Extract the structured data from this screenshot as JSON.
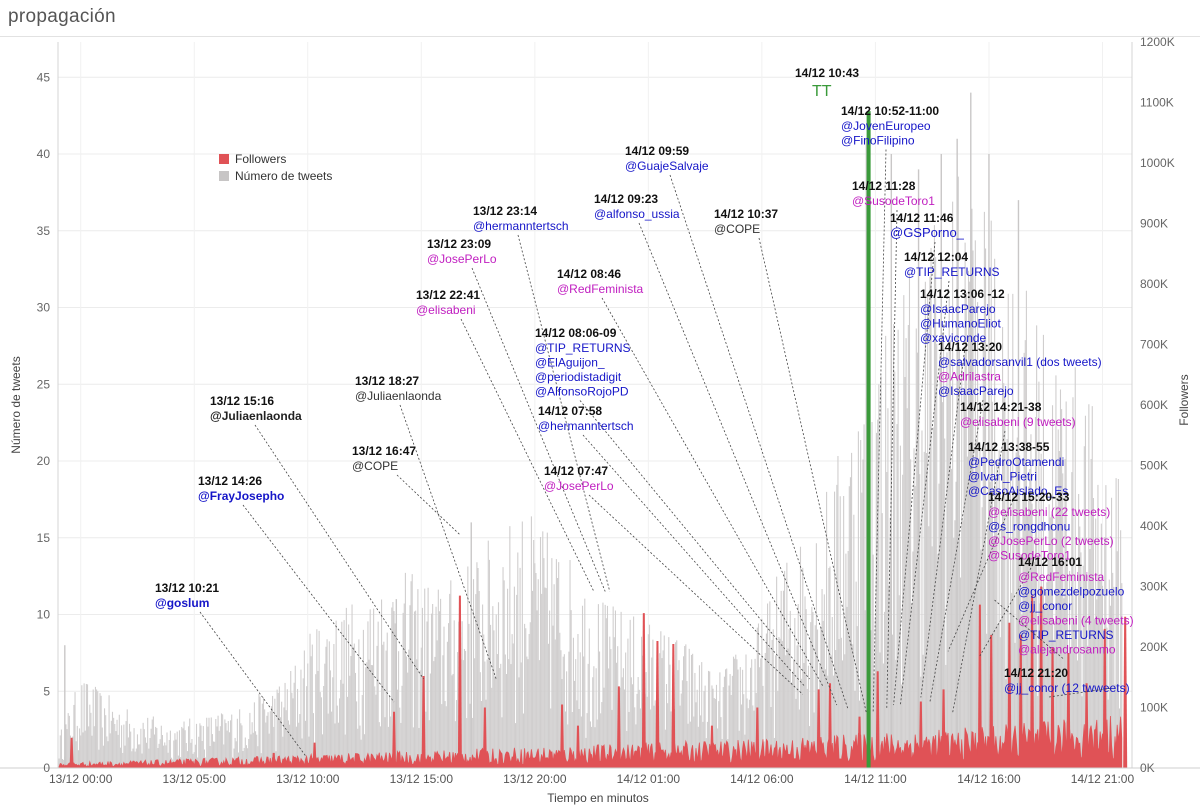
{
  "page": {
    "title": "propagación"
  },
  "chart_data": {
    "type": "bar",
    "xlabel": "Tiempo en minutos",
    "ylabel_left": "Número de tweets",
    "ylabel_right": "Followers",
    "x_ticks": [
      "13/12 00:00",
      "13/12 05:00",
      "13/12 10:00",
      "13/12 15:00",
      "13/12 20:00",
      "14/12 01:00",
      "14/12 06:00",
      "14/12 11:00",
      "14/12 16:00",
      "14/12 21:00"
    ],
    "x_range_hours": [
      -1,
      46.3
    ],
    "y_left_ticks": [
      0,
      5,
      10,
      15,
      20,
      25,
      30,
      35,
      40,
      45
    ],
    "y_left_range": [
      0,
      47.3
    ],
    "y_right_ticks": [
      "0K",
      "100K",
      "200K",
      "300K",
      "400K",
      "500K",
      "600K",
      "700K",
      "800K",
      "900K",
      "1000K",
      "1100K",
      "1200K"
    ],
    "y_right_range": [
      0,
      1200000
    ],
    "legend": {
      "position": "upper-left",
      "entries": [
        {
          "name": "Followers",
          "color": "#e05256"
        },
        {
          "name": "Número de tweets",
          "color": "#c7c5c5"
        }
      ]
    },
    "series": [
      {
        "name": "Número de tweets",
        "color": "#d0cece",
        "axis": "left",
        "envelope_hours": [
          -1,
          0,
          2,
          4,
          7,
          9,
          10.5,
          12,
          14,
          16,
          18,
          19.5,
          21,
          22,
          23,
          24.5,
          26,
          27,
          28,
          29,
          30,
          31,
          32,
          33,
          34,
          35,
          36,
          37,
          38,
          39,
          40,
          41,
          42,
          43,
          44,
          45,
          46
        ],
        "envelope_values": [
          2,
          6,
          4,
          3,
          4,
          6,
          10,
          11,
          13,
          12,
          15,
          17,
          15,
          13,
          11,
          10,
          9,
          8,
          6,
          8,
          10,
          14,
          16,
          19,
          24,
          28,
          32,
          35,
          38,
          40,
          36,
          34,
          30,
          28,
          26,
          22,
          18
        ],
        "spikes": [
          {
            "hour": -0.7,
            "value": 8
          },
          {
            "hour": 13.9,
            "value": 11
          },
          {
            "hour": 17.2,
            "value": 16
          },
          {
            "hour": 34.6,
            "value": 41
          },
          {
            "hour": 35.7,
            "value": 40
          },
          {
            "hour": 36.9,
            "value": 39
          },
          {
            "hour": 37.9,
            "value": 40
          },
          {
            "hour": 38.6,
            "value": 41
          },
          {
            "hour": 39.2,
            "value": 44
          },
          {
            "hour": 40.0,
            "value": 40
          },
          {
            "hour": 41.3,
            "value": 37
          }
        ]
      },
      {
        "name": "Followers",
        "color": "#e05256",
        "axis": "right",
        "baseline_values_k": [
          7,
          10,
          14,
          18,
          22,
          26,
          30,
          34,
          38,
          45,
          50,
          60,
          70
        ],
        "spikes": [
          {
            "hour": -0.4,
            "value_k": 50
          },
          {
            "hour": 8.5,
            "value_k": 25
          },
          {
            "hour": 10.3,
            "value_k": 42
          },
          {
            "hour": 13.8,
            "value_k": 93
          },
          {
            "hour": 15.1,
            "value_k": 152
          },
          {
            "hour": 16.7,
            "value_k": 285
          },
          {
            "hour": 17.8,
            "value_k": 100
          },
          {
            "hour": 21.2,
            "value_k": 105
          },
          {
            "hour": 21.9,
            "value_k": 70
          },
          {
            "hour": 23.7,
            "value_k": 135
          },
          {
            "hour": 24.8,
            "value_k": 256
          },
          {
            "hour": 25.4,
            "value_k": 210
          },
          {
            "hour": 26.1,
            "value_k": 205
          },
          {
            "hour": 27.8,
            "value_k": 70
          },
          {
            "hour": 29.8,
            "value_k": 100
          },
          {
            "hour": 32.5,
            "value_k": 130
          },
          {
            "hour": 33.0,
            "value_k": 140
          },
          {
            "hour": 34.3,
            "value_k": 85
          },
          {
            "hour": 35.1,
            "value_k": 160
          },
          {
            "hour": 37.0,
            "value_k": 110
          },
          {
            "hour": 38.0,
            "value_k": 130
          },
          {
            "hour": 39.6,
            "value_k": 270
          },
          {
            "hour": 40.1,
            "value_k": 220
          },
          {
            "hour": 40.9,
            "value_k": 240
          },
          {
            "hour": 41.4,
            "value_k": 220
          },
          {
            "hour": 41.9,
            "value_k": 285
          },
          {
            "hour": 42.3,
            "value_k": 300
          },
          {
            "hour": 42.8,
            "value_k": 200
          },
          {
            "hour": 43.5,
            "value_k": 190
          },
          {
            "hour": 44.3,
            "value_k": 140
          },
          {
            "hour": 45.1,
            "value_k": 230
          },
          {
            "hour": 46.0,
            "value_k": 250
          }
        ]
      },
      {
        "name": "TT",
        "color": "#3a9a3a",
        "axis": "left",
        "points": [
          {
            "hour": 34.7,
            "value": 42.8
          }
        ]
      }
    ],
    "annotations": [
      {
        "time": "13/12 10:21",
        "lines": [
          {
            "text": "@goslum",
            "color": "#1515c8",
            "bold": true
          }
        ],
        "target": [
          9.9,
          0.8
        ]
      },
      {
        "time": "13/12 14:26",
        "lines": [
          {
            "text": "@FrayJosepho",
            "color": "#1515c8",
            "bold": true
          }
        ],
        "target": [
          13.8,
          4.3
        ]
      },
      {
        "time": "13/12 15:16",
        "lines": [
          {
            "text": "@Juliaenlaonda",
            "color": "#222222",
            "bold": true
          }
        ],
        "target": [
          15.1,
          5.8
        ]
      },
      {
        "time": "13/12 18:27",
        "lines": [
          {
            "text": "@Juliaenlaonda",
            "color": "#333333",
            "bold": false
          }
        ],
        "target": [
          18.3,
          5.8
        ]
      },
      {
        "time": "13/12 16:47",
        "lines": [
          {
            "text": "@COPE",
            "color": "#333333",
            "bold": false
          }
        ],
        "target": [
          16.7,
          15.2
        ]
      },
      {
        "time": "13/12 22:41",
        "lines": [
          {
            "text": "@elisabeni",
            "color": "#c01ec0",
            "bold": false
          }
        ],
        "target": [
          22.6,
          11.5
        ]
      },
      {
        "time": "13/12 23:09",
        "lines": [
          {
            "text": "@JosePerLo",
            "color": "#c01ec0",
            "bold": false
          }
        ],
        "target": [
          23.1,
          11.5
        ]
      },
      {
        "time": "13/12 23:14",
        "lines": [
          {
            "text": "@hermanntertsch",
            "color": "#1515c8",
            "bold": false
          }
        ],
        "target": [
          23.3,
          11.5
        ]
      },
      {
        "time": "14/12 08:06-09",
        "lines": [
          {
            "text": "@TIP_RETURNS",
            "color": "#1515c8",
            "bold": false
          },
          {
            "text": "@ElAguijon_",
            "color": "#1515c8",
            "bold": false
          },
          {
            "text": "@periodistadigit",
            "color": "#1515c8",
            "bold": false
          },
          {
            "text": "@AlfonsoRojoPD",
            "color": "#1515c8",
            "bold": false
          }
        ],
        "target": [
          32.1,
          5.8
        ]
      },
      {
        "time": "14/12 08:46",
        "lines": [
          {
            "text": "@RedFeminista",
            "color": "#c01ec0",
            "bold": false
          }
        ],
        "target": [
          32.7,
          5.3
        ]
      },
      {
        "time": "14/12 07:58",
        "lines": [
          {
            "text": "@hermanntertsch",
            "color": "#1515c8",
            "bold": false
          }
        ],
        "target": [
          31.9,
          5.3
        ]
      },
      {
        "time": "14/12 07:47",
        "lines": [
          {
            "text": "@JosePerLo",
            "color": "#c01ec0",
            "bold": false
          }
        ],
        "target": [
          31.8,
          4.8
        ]
      },
      {
        "time": "14/12 09:23",
        "lines": [
          {
            "text": "@alfonso_ussia",
            "color": "#1515c8",
            "bold": false
          }
        ],
        "target": [
          33.3,
          4.1
        ]
      },
      {
        "time": "14/12 09:59",
        "lines": [
          {
            "text": "@GuajeSalvaje",
            "color": "#1515c8",
            "bold": false
          }
        ],
        "target": [
          33.8,
          3.8
        ]
      },
      {
        "time": "14/12 10:37",
        "lines": [
          {
            "text": "@COPE",
            "color": "#333333",
            "bold": false
          }
        ],
        "target": [
          34.6,
          3.6
        ]
      },
      {
        "time": "14/12 10:43",
        "lines": [
          {
            "text": "TT",
            "color": "#3a9a3a",
            "bold": false
          }
        ],
        "target": [
          34.7,
          42.8
        ]
      },
      {
        "time": "14/12 10:52-11:00",
        "lines": [
          {
            "text": "@JovenEuropeo",
            "color": "#1515c8",
            "bold": false
          },
          {
            "text": "@FinoFilipino",
            "color": "#1515c8",
            "bold": false
          }
        ],
        "target": [
          34.9,
          3.6
        ]
      },
      {
        "time": "14/12 11:28",
        "lines": [
          {
            "text": "@SusodeToro1",
            "color": "#c01ec0",
            "bold": false
          }
        ],
        "target": [
          35.5,
          3.9
        ]
      },
      {
        "time": "14/12 11:46",
        "lines": [
          {
            "text": "@GSPorno_",
            "color": "#1515c8",
            "bold": false
          }
        ],
        "target": [
          35.8,
          4.1
        ]
      },
      {
        "time": "14/12 12:04",
        "lines": [
          {
            "text": "@TIP_RETURNS",
            "color": "#1515c8",
            "bold": false
          }
        ],
        "target": [
          36.1,
          4.1
        ]
      },
      {
        "time": "14/12 13:06 -12",
        "lines": [
          {
            "text": "@IsaacParejo",
            "color": "#1515c8",
            "bold": false
          },
          {
            "text": "@HumanoEliot",
            "color": "#1515c8",
            "bold": false
          },
          {
            "text": "@xaviconde",
            "color": "#1515c8",
            "bold": false
          }
        ],
        "target": [
          37.0,
          4.6
        ]
      },
      {
        "time": "14/12 13:20",
        "lines": [
          {
            "text": "@salvadorsanvil1 (dos tweets)",
            "color": "#1515c8",
            "bold": false
          },
          {
            "text": "@Adrilastra",
            "color": "#c01ec0",
            "bold": false
          },
          {
            "text": "@IsaacParejo",
            "color": "#1515c8",
            "bold": false
          }
        ],
        "target": [
          37.4,
          4.3
        ]
      },
      {
        "time": "14/12 14:21-38",
        "lines": [
          {
            "text": "@elisabeni (9 tweets)",
            "color": "#c01ec0",
            "bold": false
          }
        ],
        "target": [
          38.4,
          3.6
        ]
      },
      {
        "time": "14/12 13:38-55",
        "lines": [
          {
            "text": "@PedroOtamendi",
            "color": "#1515c8",
            "bold": false
          },
          {
            "text": "@Ivan_Pietri",
            "color": "#1515c8",
            "bold": false
          },
          {
            "text": "@CasoAislado_Es",
            "color": "#1515c8",
            "bold": false
          }
        ],
        "target": [
          38.2,
          7.6
        ]
      },
      {
        "time": "14/12 15:20-33",
        "lines": [
          {
            "text": "@elisabeni (22 tweets)",
            "color": "#c01ec0",
            "bold": false
          },
          {
            "text": "@s_rongdhonu",
            "color": "#1515c8",
            "bold": false
          },
          {
            "text": "@JosePerLo (2 tweets)",
            "color": "#c01ec0",
            "bold": false
          },
          {
            "text": "@SusodeToro1",
            "color": "#c01ec0",
            "bold": false
          }
        ],
        "target": [
          39.6,
          7.3
        ]
      },
      {
        "time": "14/12 16:01",
        "lines": [
          {
            "text": "@RedFeminista",
            "color": "#c01ec0",
            "bold": false
          },
          {
            "text": "@gomezdelpozuelo",
            "color": "#1515c8",
            "bold": false
          },
          {
            "text": "@jj_conor",
            "color": "#1515c8",
            "bold": false
          },
          {
            "text": "@elisabeni (4 tweets)",
            "color": "#c01ec0",
            "bold": false
          },
          {
            "text": "@TIP_RETURNS",
            "color": "#1515c8",
            "bold": false
          },
          {
            "text": "@alejandrosanmo",
            "color": "#c01ec0",
            "bold": false
          }
        ],
        "target": [
          40.2,
          11.0
        ]
      },
      {
        "time": "14/12 21:20",
        "lines": [
          {
            "text": "@jj_conor (12 twweets)",
            "color": "#1515c8",
            "bold": false
          }
        ],
        "target": [
          45.4,
          5.2
        ]
      }
    ]
  }
}
